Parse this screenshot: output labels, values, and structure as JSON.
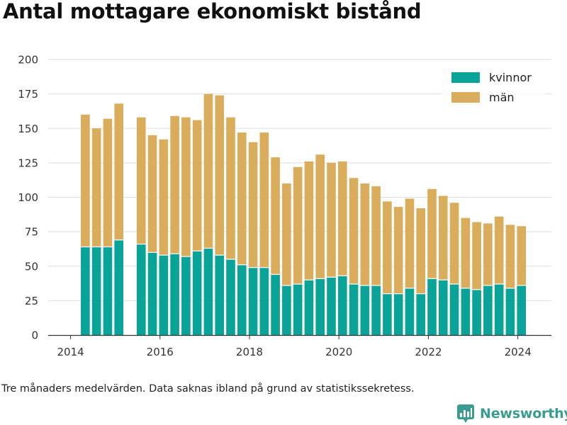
{
  "title": "Antal mottagare ekonomiskt bistånd",
  "footnote": "Tre månaders medelvärden. Data saknas ibland på grund av statistikssekretess.",
  "brand": {
    "name": "Newsworthy",
    "icon": "newsworthy-logo-icon"
  },
  "colors": {
    "kvinnor": "#0aa398",
    "man": "#d9ad5b",
    "grid": "#dddddd",
    "axis": "#333333"
  },
  "chart_data": {
    "type": "bar",
    "stacked": true,
    "x_unit": "year",
    "xlim": [
      2013.5,
      2024.75
    ],
    "ylim": [
      0,
      200
    ],
    "yticks": [
      0,
      25,
      50,
      75,
      100,
      125,
      150,
      175,
      200
    ],
    "xticks": [
      2014,
      2016,
      2018,
      2020,
      2022,
      2024
    ],
    "grid": true,
    "legend_position": "top-right",
    "x": [
      2014.33,
      2014.58,
      2014.83,
      2015.08,
      2015.58,
      2015.83,
      2016.08,
      2016.33,
      2016.58,
      2016.83,
      2017.08,
      2017.33,
      2017.58,
      2017.83,
      2018.08,
      2018.33,
      2018.58,
      2018.83,
      2019.08,
      2019.33,
      2019.58,
      2019.83,
      2020.08,
      2020.33,
      2020.58,
      2020.83,
      2021.08,
      2021.33,
      2021.58,
      2021.83,
      2022.08,
      2022.33,
      2022.58,
      2022.83,
      2023.08,
      2023.33,
      2023.58,
      2023.83,
      2024.08
    ],
    "series": [
      {
        "name": "kvinnor",
        "values": [
          64,
          64,
          64,
          69,
          66,
          60,
          58,
          59,
          57,
          61,
          63,
          58,
          55,
          51,
          49,
          49,
          44,
          36,
          37,
          40,
          41,
          42,
          43,
          37,
          36,
          36,
          30,
          30,
          34,
          30,
          41,
          40,
          37,
          34,
          33,
          36,
          37,
          34,
          36
        ]
      },
      {
        "name": "män",
        "values": [
          96,
          86,
          93,
          99,
          92,
          85,
          84,
          100,
          101,
          95,
          112,
          116,
          103,
          96,
          91,
          98,
          85,
          74,
          85,
          86,
          90,
          83,
          83,
          77,
          74,
          72,
          67,
          63,
          65,
          62,
          65,
          61,
          59,
          51,
          49,
          45,
          49,
          46,
          43
        ]
      }
    ]
  }
}
